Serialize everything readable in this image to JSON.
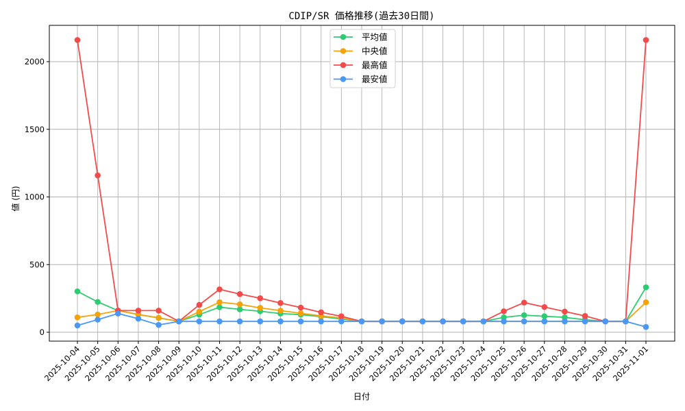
{
  "chart_data": {
    "type": "line",
    "title": "CDIP/SR 価格推移(過去30日間)",
    "xlabel": "日付",
    "ylabel": "値 (円)",
    "ylim": [
      -70,
      2265
    ],
    "yticks": [
      0,
      500,
      1000,
      1500,
      2000
    ],
    "grid": true,
    "legend_position": "upper center",
    "categories": [
      "2025-10-04",
      "2025-10-05",
      "2025-10-06",
      "2025-10-07",
      "2025-10-08",
      "2025-10-09",
      "2025-10-10",
      "2025-10-11",
      "2025-10-12",
      "2025-10-13",
      "2025-10-14",
      "2025-10-15",
      "2025-10-16",
      "2025-10-17",
      "2025-10-18",
      "2025-10-19",
      "2025-10-20",
      "2025-10-21",
      "2025-10-22",
      "2025-10-23",
      "2025-10-24",
      "2025-10-25",
      "2025-10-26",
      "2025-10-27",
      "2025-10-28",
      "2025-10-29",
      "2025-10-30",
      "2025-10-31",
      "2025-11-01"
    ],
    "series": [
      {
        "name": "平均値",
        "color": "#2ecc71",
        "values": [
          302,
          224,
          160,
          131,
          106,
          80,
          130,
          185,
          169,
          155,
          138,
          130,
          115,
          98,
          80,
          80,
          80,
          80,
          80,
          80,
          80,
          110,
          126,
          118,
          110,
          92,
          80,
          80,
          332
        ]
      },
      {
        "name": "中央値",
        "color": "#f5a30a",
        "values": [
          110,
          131,
          160,
          131,
          106,
          80,
          152,
          222,
          206,
          180,
          160,
          140,
          121,
          105,
          80,
          80,
          80,
          80,
          80,
          80,
          80,
          80,
          80,
          80,
          80,
          80,
          80,
          80,
          221
        ]
      },
      {
        "name": "最高値",
        "color": "#f44a4a",
        "values": [
          2160,
          1159,
          160,
          160,
          160,
          80,
          202,
          317,
          282,
          251,
          216,
          182,
          147,
          118,
          80,
          80,
          80,
          80,
          80,
          80,
          80,
          155,
          219,
          186,
          153,
          120,
          80,
          80,
          2160
        ]
      },
      {
        "name": "最安値",
        "color": "#4a98f5",
        "values": [
          50,
          93,
          138,
          100,
          54,
          80,
          80,
          80,
          80,
          80,
          80,
          80,
          80,
          80,
          80,
          80,
          80,
          80,
          80,
          80,
          80,
          80,
          80,
          80,
          80,
          80,
          80,
          80,
          39
        ]
      }
    ]
  }
}
